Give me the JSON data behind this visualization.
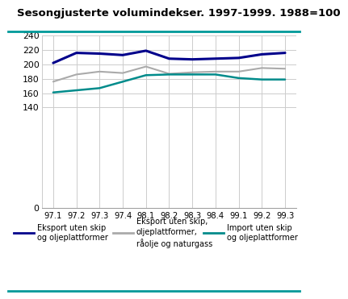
{
  "title": "Sesongjusterte volumindekser. 1997-1999. 1988=100",
  "x_labels": [
    "97.1",
    "97.2",
    "97.3",
    "97.4",
    "98.1",
    "98.2",
    "98.3",
    "98.4",
    "99.1",
    "99.2",
    "99.3"
  ],
  "series": [
    {
      "name": "Eksport uten skip\nog oljeplattformer",
      "color": "#00008B",
      "linewidth": 2.2,
      "values": [
        202,
        216,
        215,
        213,
        219,
        208,
        207,
        208,
        209,
        214,
        216
      ]
    },
    {
      "name": "Eksport uten skip,\noljeplattformer,\nråolje og naturgass",
      "color": "#AAAAAA",
      "linewidth": 1.5,
      "values": [
        176,
        186,
        190,
        188,
        197,
        187,
        189,
        190,
        190,
        195,
        194
      ]
    },
    {
      "name": "Import uten skip\nog oljeplattformer",
      "color": "#008B8B",
      "linewidth": 1.8,
      "values": [
        161,
        164,
        167,
        176,
        185,
        186,
        186,
        186,
        181,
        179,
        179
      ]
    }
  ],
  "ylim": [
    0,
    240
  ],
  "yticks": [
    0,
    140,
    160,
    180,
    200,
    220,
    240
  ],
  "bg_color": "#ffffff",
  "grid_color": "#cccccc",
  "title_color": "#000000",
  "title_fontsize": 9.5,
  "separator_color": "#009999",
  "legend": [
    {
      "label": "Eksport uten skip\nog oljeplattformer",
      "color": "#00008B"
    },
    {
      "label": "Eksport uten skip,\noljeplattformer,\nråolje og naturgass",
      "color": "#AAAAAA"
    },
    {
      "label": "Import uten skip\nog oljeplattformer",
      "color": "#008B8B"
    }
  ]
}
